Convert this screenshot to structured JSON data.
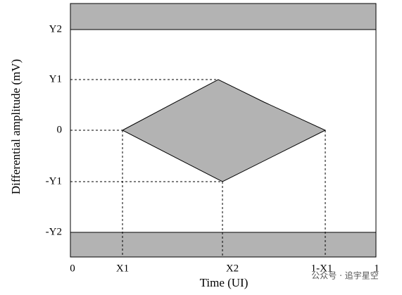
{
  "y_axis": {
    "label": "Differential amplitude (mV)",
    "ticks": [
      "Y2",
      "Y1",
      "0",
      "-Y1",
      "-Y2"
    ]
  },
  "x_axis": {
    "label": "Time (UI)",
    "ticks": [
      "0",
      "X1",
      "X2",
      "1-X1",
      "1"
    ]
  },
  "watermark": "公众号 · 追宇星空"
}
